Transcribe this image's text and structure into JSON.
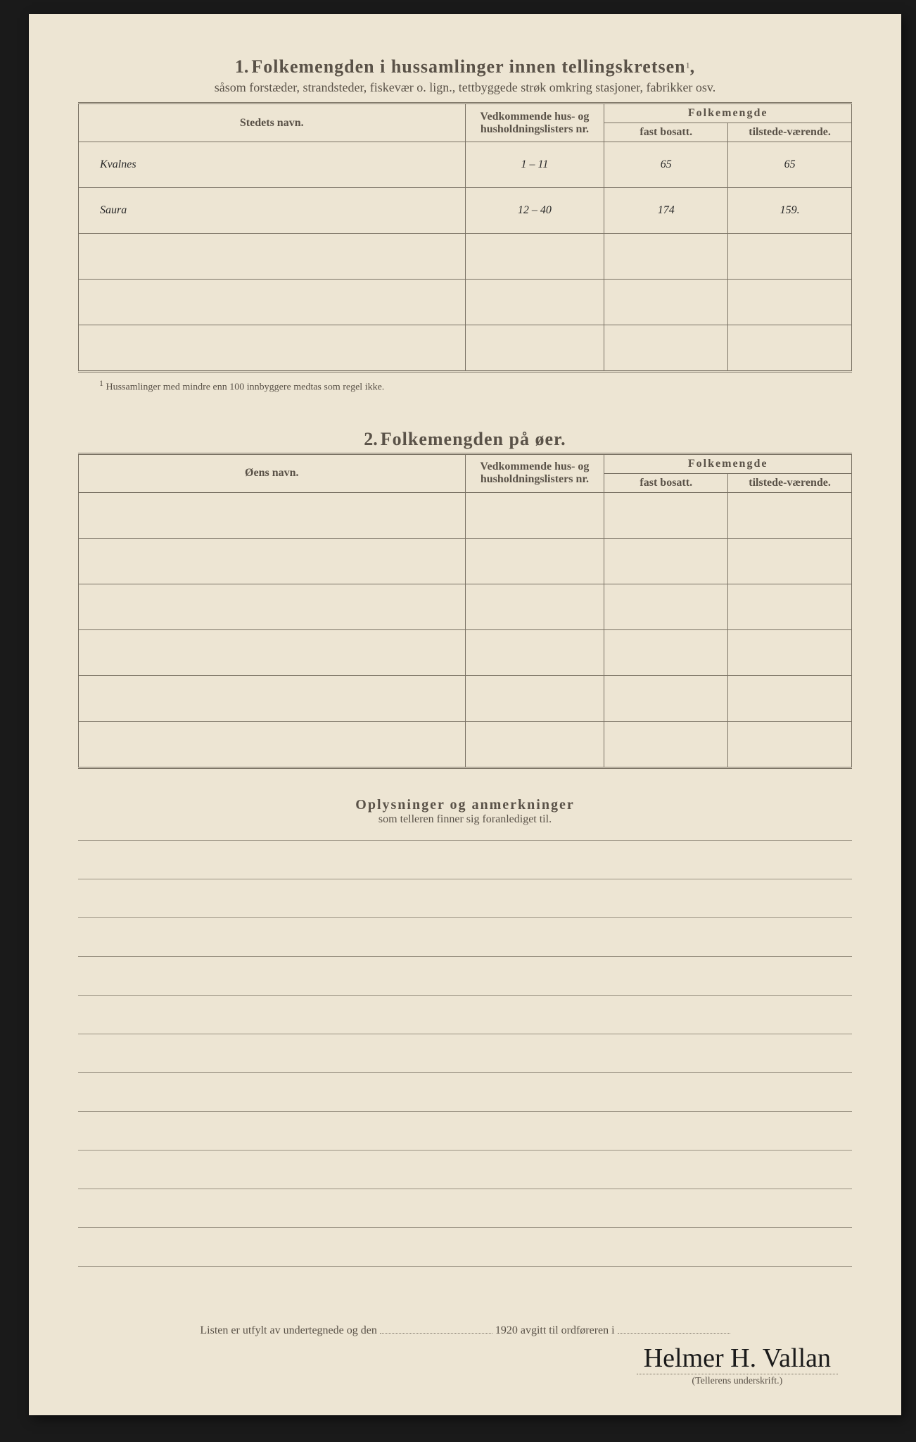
{
  "section1": {
    "num": "1.",
    "title": "Folkemengden i hussamlinger innen tellingskretsen",
    "sup": "1",
    "comma": ",",
    "subtitle": "såsom forstæder, strandsteder, fiskevær o. lign., tettbyggede strøk omkring stasjoner, fabrikker osv.",
    "col_name": "Stedets navn.",
    "col_ref": "Vedkommende hus- og husholdningslisters nr.",
    "col_pop": "Folkemengde",
    "col_fast": "fast bosatt.",
    "col_til": "tilstede-værende.",
    "rows": [
      {
        "name": "Kvalnes",
        "ref": "1 – 11",
        "fast": "65",
        "til": "65"
      },
      {
        "name": "Saura",
        "ref": "12 – 40",
        "fast": "174",
        "til": "159."
      }
    ],
    "empty_rows": 3,
    "footnote_sup": "1",
    "footnote": "Hussamlinger med mindre enn 100 innbyggere medtas som regel ikke."
  },
  "section2": {
    "num": "2.",
    "title": "Folkemengden på øer.",
    "col_name": "Øens navn.",
    "col_ref": "Vedkommende hus- og husholdningslisters nr.",
    "col_pop": "Folkemengde",
    "col_fast": "fast bosatt.",
    "col_til": "tilstede-værende.",
    "empty_rows": 6
  },
  "remarks": {
    "title": "Oplysninger og anmerkninger",
    "subtitle": "som telleren finner sig foranlediget til.",
    "line_count": 11
  },
  "signature": {
    "text1": "Listen er utfylt av undertegnede og den",
    "year": "1920",
    "text2": "avgitt til ordføreren i",
    "name": "Helmer H. Vallan",
    "label": "(Tellerens underskrift.)"
  }
}
